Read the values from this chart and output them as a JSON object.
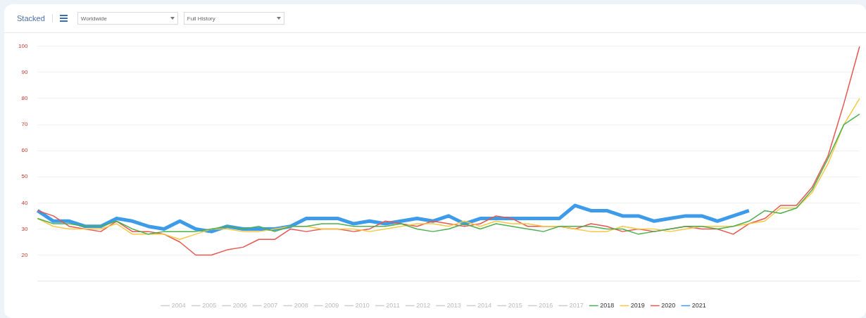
{
  "chart_data": {
    "type": "line",
    "title": "Stacked",
    "annotations": [
      "Worldwide",
      "Full History"
    ],
    "categories": [
      null,
      null,
      null,
      null,
      null,
      null,
      null,
      null,
      null,
      null,
      null,
      null,
      null,
      null,
      null,
      null,
      null,
      null,
      null,
      null,
      null,
      null,
      null,
      null,
      null,
      null,
      null,
      null,
      null,
      null,
      null,
      null,
      null,
      null,
      null,
      null,
      null,
      null,
      null,
      null,
      null,
      null,
      null,
      null,
      null,
      null,
      null,
      null,
      null,
      null,
      null,
      null,
      null
    ],
    "ylim": [
      10,
      100
    ],
    "yticks": [
      {
        "value": 10,
        "label": null
      },
      20,
      30,
      40,
      50,
      60,
      70,
      80,
      90,
      100
    ],
    "grid": "y",
    "legend": "bottom",
    "marker": "none",
    "line_style": "solid",
    "series": [
      {
        "name": "2004",
        "color": "#cccccc",
        "values": [
          null,
          null,
          null,
          null,
          null,
          null,
          null,
          null,
          null,
          null,
          null,
          null,
          null,
          null,
          null,
          null,
          null,
          null,
          null,
          null,
          null,
          null,
          null,
          null,
          null,
          null,
          null,
          null,
          null,
          null,
          null,
          null,
          null,
          null,
          null,
          null,
          null,
          null,
          null,
          null,
          null,
          null,
          null,
          null,
          null,
          null,
          null,
          null,
          null,
          null,
          null,
          null,
          null
        ]
      },
      {
        "name": "2005",
        "color": "#cccccc",
        "values": [
          null,
          null,
          null,
          null,
          null,
          null,
          null,
          null,
          null,
          null,
          null,
          null,
          null,
          null,
          null,
          null,
          null,
          null,
          null,
          null,
          null,
          null,
          null,
          null,
          null,
          null,
          null,
          null,
          null,
          null,
          null,
          null,
          null,
          null,
          null,
          null,
          null,
          null,
          null,
          null,
          null,
          null,
          null,
          null,
          null,
          null,
          null,
          null,
          null,
          null,
          null,
          null,
          null
        ]
      },
      {
        "name": "2006",
        "color": "#cccccc",
        "values": [
          null,
          null,
          null,
          null,
          null,
          null,
          null,
          null,
          null,
          null,
          null,
          null,
          null,
          null,
          null,
          null,
          null,
          null,
          null,
          null,
          null,
          null,
          null,
          null,
          null,
          null,
          null,
          null,
          null,
          null,
          null,
          null,
          null,
          null,
          null,
          null,
          null,
          null,
          null,
          null,
          null,
          null,
          null,
          null,
          null,
          null,
          null,
          null,
          null,
          null,
          null,
          null,
          null
        ]
      },
      {
        "name": "2007",
        "color": "#cccccc",
        "values": [
          null,
          null,
          null,
          null,
          null,
          null,
          null,
          null,
          null,
          null,
          null,
          null,
          null,
          null,
          null,
          null,
          null,
          null,
          null,
          null,
          null,
          null,
          null,
          null,
          null,
          null,
          null,
          null,
          null,
          null,
          null,
          null,
          null,
          null,
          null,
          null,
          null,
          null,
          null,
          null,
          null,
          null,
          null,
          null,
          null,
          null,
          null,
          null,
          null,
          null,
          null,
          null,
          null
        ]
      },
      {
        "name": "2008",
        "color": "#cccccc",
        "values": [
          null,
          null,
          null,
          null,
          null,
          null,
          null,
          null,
          null,
          null,
          null,
          null,
          null,
          null,
          null,
          null,
          null,
          null,
          null,
          null,
          null,
          null,
          null,
          null,
          null,
          null,
          null,
          null,
          null,
          null,
          null,
          null,
          null,
          null,
          null,
          null,
          null,
          null,
          null,
          null,
          null,
          null,
          null,
          null,
          null,
          null,
          null,
          null,
          null,
          null,
          null,
          null,
          null
        ]
      },
      {
        "name": "2009",
        "color": "#cccccc",
        "values": [
          null,
          null,
          null,
          null,
          null,
          null,
          null,
          null,
          null,
          null,
          null,
          null,
          null,
          null,
          null,
          null,
          null,
          null,
          null,
          null,
          null,
          null,
          null,
          null,
          null,
          null,
          null,
          null,
          null,
          null,
          null,
          null,
          null,
          null,
          null,
          null,
          null,
          null,
          null,
          null,
          null,
          null,
          null,
          null,
          null,
          null,
          null,
          null,
          null,
          null,
          null,
          null,
          null
        ]
      },
      {
        "name": "2010",
        "color": "#cccccc",
        "values": [
          null,
          null,
          null,
          null,
          null,
          null,
          null,
          null,
          null,
          null,
          null,
          null,
          null,
          null,
          null,
          null,
          null,
          null,
          null,
          null,
          null,
          null,
          null,
          null,
          null,
          null,
          null,
          null,
          null,
          null,
          null,
          null,
          null,
          null,
          null,
          null,
          null,
          null,
          null,
          null,
          null,
          null,
          null,
          null,
          null,
          null,
          null,
          null,
          null,
          null,
          null,
          null,
          null
        ]
      },
      {
        "name": "2011",
        "color": "#cccccc",
        "values": [
          null,
          null,
          null,
          null,
          null,
          null,
          null,
          null,
          null,
          null,
          null,
          null,
          null,
          null,
          null,
          null,
          null,
          null,
          null,
          null,
          null,
          null,
          null,
          null,
          null,
          null,
          null,
          null,
          null,
          null,
          null,
          null,
          null,
          null,
          null,
          null,
          null,
          null,
          null,
          null,
          null,
          null,
          null,
          null,
          null,
          null,
          null,
          null,
          null,
          null,
          null,
          null,
          null
        ]
      },
      {
        "name": "2012",
        "color": "#cccccc",
        "values": [
          null,
          null,
          null,
          null,
          null,
          null,
          null,
          null,
          null,
          null,
          null,
          null,
          null,
          null,
          null,
          null,
          null,
          null,
          null,
          null,
          null,
          null,
          null,
          null,
          null,
          null,
          null,
          null,
          null,
          null,
          null,
          null,
          null,
          null,
          null,
          null,
          null,
          null,
          null,
          null,
          null,
          null,
          null,
          null,
          null,
          null,
          null,
          null,
          null,
          null,
          null,
          null,
          null
        ]
      },
      {
        "name": "2013",
        "color": "#cccccc",
        "values": [
          null,
          null,
          null,
          null,
          null,
          null,
          null,
          null,
          null,
          null,
          null,
          null,
          null,
          null,
          null,
          null,
          null,
          null,
          null,
          null,
          null,
          null,
          null,
          null,
          null,
          null,
          null,
          null,
          null,
          null,
          null,
          null,
          null,
          null,
          null,
          null,
          null,
          null,
          null,
          null,
          null,
          null,
          null,
          null,
          null,
          null,
          null,
          null,
          null,
          null,
          null,
          null,
          null
        ]
      },
      {
        "name": "2014",
        "color": "#cccccc",
        "values": [
          null,
          null,
          null,
          null,
          null,
          null,
          null,
          null,
          null,
          null,
          null,
          null,
          null,
          null,
          null,
          null,
          null,
          null,
          null,
          null,
          null,
          null,
          null,
          null,
          null,
          null,
          null,
          null,
          null,
          null,
          null,
          null,
          null,
          null,
          null,
          null,
          null,
          null,
          null,
          null,
          null,
          null,
          null,
          null,
          null,
          null,
          null,
          null,
          null,
          null,
          null,
          null,
          null
        ]
      },
      {
        "name": "2015",
        "color": "#cccccc",
        "values": [
          null,
          null,
          null,
          null,
          null,
          null,
          null,
          null,
          null,
          null,
          null,
          null,
          null,
          null,
          null,
          null,
          null,
          null,
          null,
          null,
          null,
          null,
          null,
          null,
          null,
          null,
          null,
          null,
          null,
          null,
          null,
          null,
          null,
          null,
          null,
          null,
          null,
          null,
          null,
          null,
          null,
          null,
          null,
          null,
          null,
          null,
          null,
          null,
          null,
          null,
          null,
          null,
          null
        ]
      },
      {
        "name": "2016",
        "color": "#cccccc",
        "values": [
          null,
          null,
          null,
          null,
          null,
          null,
          null,
          null,
          null,
          null,
          null,
          null,
          null,
          null,
          null,
          null,
          null,
          null,
          null,
          null,
          null,
          null,
          null,
          null,
          null,
          null,
          null,
          null,
          null,
          null,
          null,
          null,
          null,
          null,
          null,
          null,
          null,
          null,
          null,
          null,
          null,
          null,
          null,
          null,
          null,
          null,
          null,
          null,
          null,
          null,
          null,
          null,
          null
        ]
      },
      {
        "name": "2017",
        "color": "#cccccc",
        "values": [
          null,
          null,
          null,
          null,
          null,
          null,
          null,
          null,
          null,
          null,
          null,
          null,
          null,
          null,
          null,
          null,
          null,
          null,
          null,
          null,
          null,
          null,
          null,
          null,
          null,
          null,
          null,
          null,
          null,
          null,
          null,
          null,
          null,
          null,
          null,
          null,
          null,
          null,
          null,
          null,
          null,
          null,
          null,
          null,
          null,
          null,
          null,
          null,
          null,
          null,
          null,
          null,
          null
        ]
      },
      {
        "name": "2018",
        "color": "#4caf50",
        "values": [
          34,
          32,
          32,
          31,
          31,
          33,
          30,
          28,
          29,
          29,
          29,
          30,
          31,
          30,
          31,
          29,
          31,
          31,
          32,
          32,
          31,
          31,
          31,
          32,
          30,
          29,
          30,
          32,
          30,
          32,
          31,
          30,
          29,
          31,
          31,
          31,
          30,
          30,
          28,
          29,
          30,
          31,
          31,
          30,
          31,
          33,
          37,
          36,
          38,
          45,
          57,
          70,
          74
        ]
      },
      {
        "name": "2019",
        "color": "#f5c842",
        "values": [
          34,
          31,
          30,
          30,
          30,
          32,
          28,
          28,
          28,
          26,
          28,
          30,
          30,
          29,
          29,
          30,
          31,
          31,
          30,
          30,
          30,
          29,
          30,
          31,
          32,
          32,
          31,
          33,
          31,
          33,
          32,
          32,
          31,
          31,
          30,
          29,
          29,
          31,
          30,
          30,
          29,
          30,
          31,
          31,
          31,
          32,
          33,
          38,
          38,
          44,
          55,
          70,
          80
        ]
      },
      {
        "name": "2020",
        "color": "#e8554e",
        "values": [
          37,
          35,
          31,
          30,
          29,
          33,
          29,
          29,
          28,
          25,
          20,
          20,
          22,
          23,
          26,
          26,
          30,
          29,
          30,
          30,
          29,
          30,
          33,
          32,
          31,
          33,
          32,
          31,
          32,
          35,
          34,
          31,
          31,
          31,
          30,
          32,
          31,
          29,
          30,
          29,
          30,
          31,
          30,
          30,
          28,
          32,
          34,
          39,
          39,
          46,
          58,
          78,
          100
        ]
      },
      {
        "name": "2021",
        "color": "#3d9be9",
        "values": [
          37,
          33,
          33,
          31,
          31,
          34,
          33,
          31,
          30,
          33,
          30,
          29,
          31,
          30,
          30,
          30,
          31,
          34,
          34,
          34,
          32,
          33,
          32,
          33,
          34,
          33,
          35,
          32,
          34,
          34,
          34,
          34,
          34,
          34,
          39,
          37,
          37,
          35,
          35,
          33,
          34,
          35,
          35,
          33,
          35,
          37,
          null,
          null,
          null,
          null,
          null,
          null,
          null
        ]
      }
    ]
  }
}
